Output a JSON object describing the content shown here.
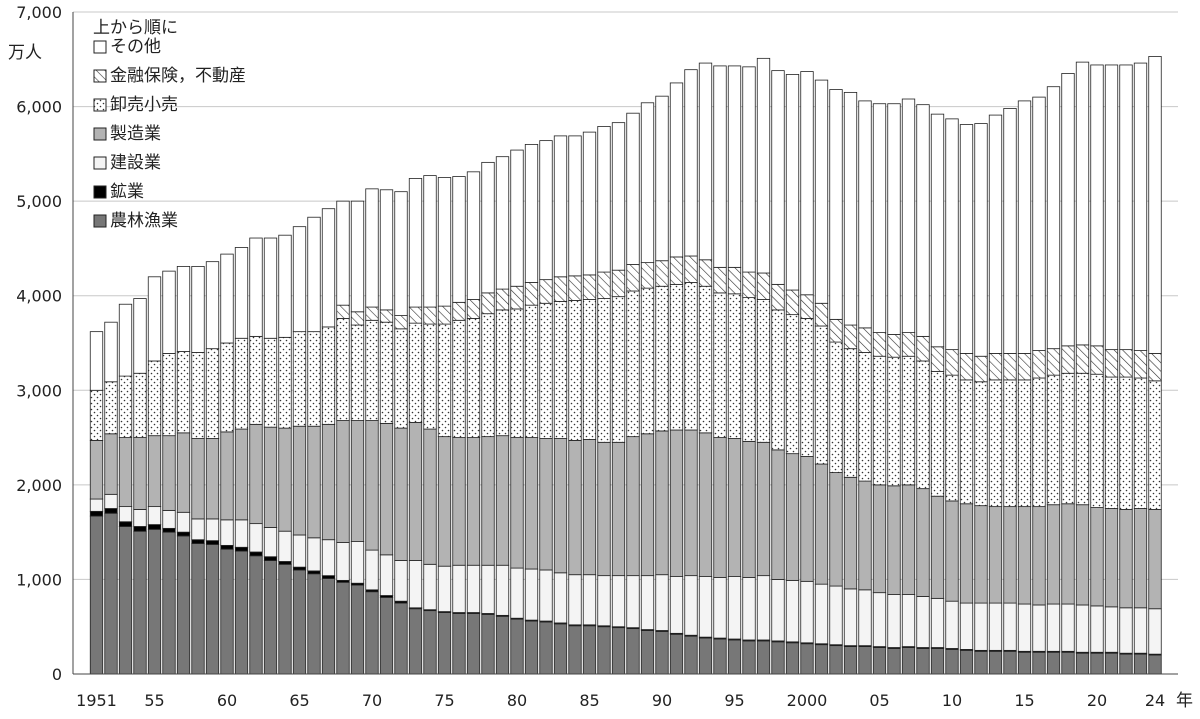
{
  "chart_data": {
    "type": "bar",
    "stacked": true,
    "y_unit_label": "万人",
    "x_unit_label": "年",
    "ylim": [
      0,
      7000
    ],
    "yticks": [
      0,
      1000,
      2000,
      3000,
      4000,
      5000,
      6000,
      7000
    ],
    "ytick_labels": [
      "0",
      "1,000",
      "2,000",
      "3,000",
      "4,000",
      "5,000",
      "6,000",
      "7,000"
    ],
    "grid": true,
    "legend_title": "上から順に",
    "legend_position": "top-left",
    "years": [
      1951,
      1952,
      1953,
      1954,
      1955,
      1956,
      1957,
      1958,
      1959,
      1960,
      1961,
      1962,
      1963,
      1964,
      1965,
      1966,
      1967,
      1968,
      1969,
      1970,
      1971,
      1972,
      1973,
      1974,
      1975,
      1976,
      1977,
      1978,
      1979,
      1980,
      1981,
      1982,
      1983,
      1984,
      1985,
      1986,
      1987,
      1988,
      1989,
      1990,
      1991,
      1992,
      1993,
      1994,
      1995,
      1996,
      1997,
      1998,
      1999,
      2000,
      2001,
      2002,
      2003,
      2004,
      2005,
      2006,
      2007,
      2008,
      2009,
      2010,
      2011,
      2012,
      2013,
      2014,
      2015,
      2016,
      2017,
      2018,
      2019,
      2020,
      2021,
      2022,
      2023,
      2024
    ],
    "x_tick_labels": [
      {
        "year": 1951,
        "label": "1951"
      },
      {
        "year": 1955,
        "label": "55"
      },
      {
        "year": 1960,
        "label": "60"
      },
      {
        "year": 1965,
        "label": "65"
      },
      {
        "year": 1970,
        "label": "70"
      },
      {
        "year": 1975,
        "label": "75"
      },
      {
        "year": 1980,
        "label": "80"
      },
      {
        "year": 1985,
        "label": "85"
      },
      {
        "year": 1990,
        "label": "90"
      },
      {
        "year": 1995,
        "label": "95"
      },
      {
        "year": 2000,
        "label": "2000"
      },
      {
        "year": 2005,
        "label": "05"
      },
      {
        "year": 2010,
        "label": "10"
      },
      {
        "year": 2015,
        "label": "15"
      },
      {
        "year": 2020,
        "label": "20"
      },
      {
        "year": 2024,
        "label": "24"
      }
    ],
    "series": [
      {
        "name": "農林漁業",
        "key": "agri",
        "fill": "solid",
        "color": "#777777",
        "values": [
          1670,
          1700,
          1560,
          1510,
          1530,
          1500,
          1460,
          1380,
          1370,
          1320,
          1300,
          1250,
          1200,
          1160,
          1100,
          1060,
          1010,
          970,
          940,
          870,
          810,
          750,
          690,
          670,
          650,
          640,
          640,
          630,
          610,
          580,
          560,
          550,
          530,
          510,
          510,
          500,
          490,
          480,
          460,
          450,
          420,
          400,
          380,
          370,
          360,
          350,
          350,
          340,
          330,
          320,
          310,
          300,
          290,
          290,
          280,
          270,
          280,
          270,
          270,
          260,
          250,
          240,
          240,
          240,
          230,
          230,
          230,
          230,
          220,
          220,
          220,
          210,
          210,
          200
        ]
      },
      {
        "name": "鉱業",
        "key": "mining",
        "fill": "solid",
        "color": "#000000",
        "values": [
          50,
          50,
          50,
          50,
          50,
          40,
          40,
          40,
          40,
          40,
          40,
          40,
          40,
          30,
          30,
          30,
          30,
          20,
          20,
          20,
          20,
          20,
          10,
          10,
          10,
          10,
          10,
          10,
          10,
          10,
          10,
          10,
          10,
          10,
          10,
          10,
          10,
          10,
          10,
          10,
          10,
          10,
          10,
          10,
          10,
          10,
          10,
          10,
          10,
          10,
          10,
          10,
          10,
          10,
          10,
          10,
          10,
          10,
          10,
          10,
          10,
          10,
          10,
          10,
          10,
          10,
          10,
          10,
          10,
          10,
          10,
          10,
          10,
          10
        ]
      },
      {
        "name": "建設業",
        "key": "construction",
        "fill": "light",
        "color": "#f4f4f4",
        "values": [
          130,
          150,
          160,
          180,
          190,
          190,
          210,
          220,
          230,
          270,
          290,
          300,
          310,
          320,
          340,
          350,
          380,
          400,
          440,
          420,
          430,
          430,
          500,
          480,
          480,
          500,
          500,
          510,
          530,
          530,
          540,
          540,
          530,
          530,
          530,
          530,
          540,
          550,
          570,
          590,
          600,
          630,
          640,
          640,
          660,
          660,
          680,
          650,
          650,
          650,
          630,
          620,
          600,
          590,
          570,
          560,
          550,
          540,
          520,
          500,
          490,
          500,
          500,
          500,
          500,
          490,
          500,
          500,
          500,
          490,
          480,
          480,
          480,
          480
        ]
      },
      {
        "name": "製造業",
        "key": "manufacturing",
        "fill": "gray",
        "color": "#b3b3b3",
        "values": [
          620,
          640,
          730,
          760,
          750,
          790,
          840,
          850,
          850,
          930,
          960,
          1050,
          1060,
          1090,
          1150,
          1180,
          1220,
          1290,
          1280,
          1370,
          1390,
          1400,
          1460,
          1430,
          1370,
          1350,
          1350,
          1360,
          1370,
          1380,
          1390,
          1390,
          1420,
          1420,
          1430,
          1410,
          1410,
          1470,
          1500,
          1520,
          1550,
          1540,
          1520,
          1480,
          1460,
          1440,
          1410,
          1370,
          1340,
          1320,
          1270,
          1200,
          1180,
          1150,
          1140,
          1150,
          1160,
          1140,
          1080,
          1060,
          1050,
          1030,
          1020,
          1020,
          1030,
          1040,
          1050,
          1060,
          1060,
          1040,
          1040,
          1040,
          1050,
          1050
        ]
      },
      {
        "name": "卸売小売",
        "key": "wholesale",
        "fill": "dots",
        "color": "#ffffff",
        "values": [
          530,
          550,
          650,
          680,
          790,
          870,
          860,
          910,
          950,
          940,
          960,
          930,
          940,
          960,
          1000,
          1000,
          1030,
          1080,
          1010,
          1060,
          1070,
          1050,
          1050,
          1110,
          1190,
          1240,
          1260,
          1300,
          1330,
          1360,
          1400,
          1430,
          1450,
          1480,
          1480,
          1520,
          1540,
          1540,
          1540,
          1530,
          1540,
          1560,
          1550,
          1530,
          1530,
          1520,
          1510,
          1480,
          1470,
          1460,
          1460,
          1380,
          1360,
          1360,
          1360,
          1360,
          1360,
          1350,
          1320,
          1330,
          1310,
          1310,
          1340,
          1340,
          1340,
          1360,
          1370,
          1380,
          1390,
          1410,
          1390,
          1400,
          1380,
          1360
        ]
      },
      {
        "name": "金融保険，不動産",
        "key": "finance",
        "fill": "hatch",
        "color": "#ffffff",
        "values": [
          0,
          0,
          0,
          0,
          0,
          0,
          0,
          0,
          0,
          0,
          0,
          0,
          0,
          0,
          0,
          0,
          0,
          140,
          140,
          140,
          130,
          140,
          170,
          180,
          190,
          190,
          200,
          220,
          220,
          240,
          240,
          250,
          260,
          260,
          260,
          280,
          280,
          280,
          270,
          270,
          290,
          280,
          280,
          270,
          280,
          270,
          280,
          270,
          260,
          250,
          240,
          240,
          250,
          260,
          250,
          240,
          250,
          260,
          260,
          270,
          280,
          270,
          280,
          280,
          280,
          290,
          280,
          290,
          300,
          300,
          290,
          290,
          290,
          290
        ]
      },
      {
        "name": "その他",
        "key": "other",
        "fill": "white",
        "color": "#ffffff",
        "values": [
          620,
          630,
          760,
          790,
          890,
          870,
          900,
          910,
          920,
          940,
          960,
          1040,
          1060,
          1080,
          1110,
          1210,
          1250,
          1100,
          1170,
          1250,
          1270,
          1310,
          1360,
          1390,
          1360,
          1330,
          1350,
          1380,
          1400,
          1440,
          1460,
          1470,
          1490,
          1480,
          1510,
          1540,
          1560,
          1600,
          1690,
          1740,
          1840,
          1970,
          2080,
          2130,
          2130,
          2170,
          2270,
          2260,
          2280,
          2360,
          2360,
          2430,
          2460,
          2400,
          2420,
          2440,
          2470,
          2450,
          2460,
          2440,
          2420,
          2460,
          2520,
          2590,
          2670,
          2680,
          2770,
          2880,
          2990,
          2970,
          3010,
          3010,
          3040,
          3140
        ]
      }
    ]
  }
}
